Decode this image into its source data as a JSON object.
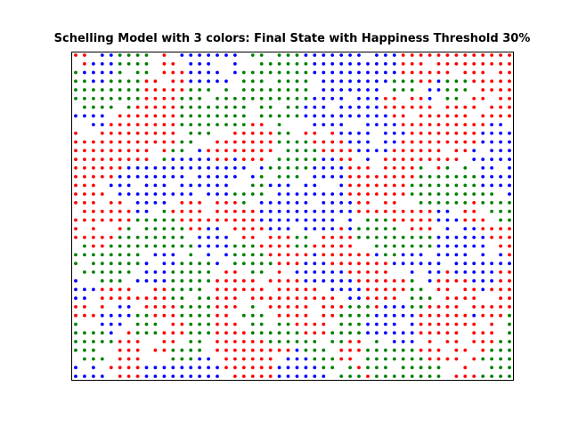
{
  "chart_data": {
    "type": "scatter",
    "title": "Schelling Model with 3 colors: Final State with Happiness Threshold 30%",
    "xlabel": "",
    "ylabel": "",
    "axes_ticks_visible": false,
    "grid": false,
    "grid_size": {
      "cols": 50,
      "rows": 38
    },
    "series": [
      {
        "color": "#ff0000",
        "approx_count": 560
      },
      {
        "color": "#0000ff",
        "approx_count": 560
      },
      {
        "color": "#008000",
        "approx_count": 560
      }
    ],
    "occupancy_approx": 0.88,
    "note_pattern": "clustered agents; empty cells shown as white"
  },
  "ui": {
    "title": "Schelling Model with 3 colors: Final State with Happiness Threshold 30%"
  }
}
